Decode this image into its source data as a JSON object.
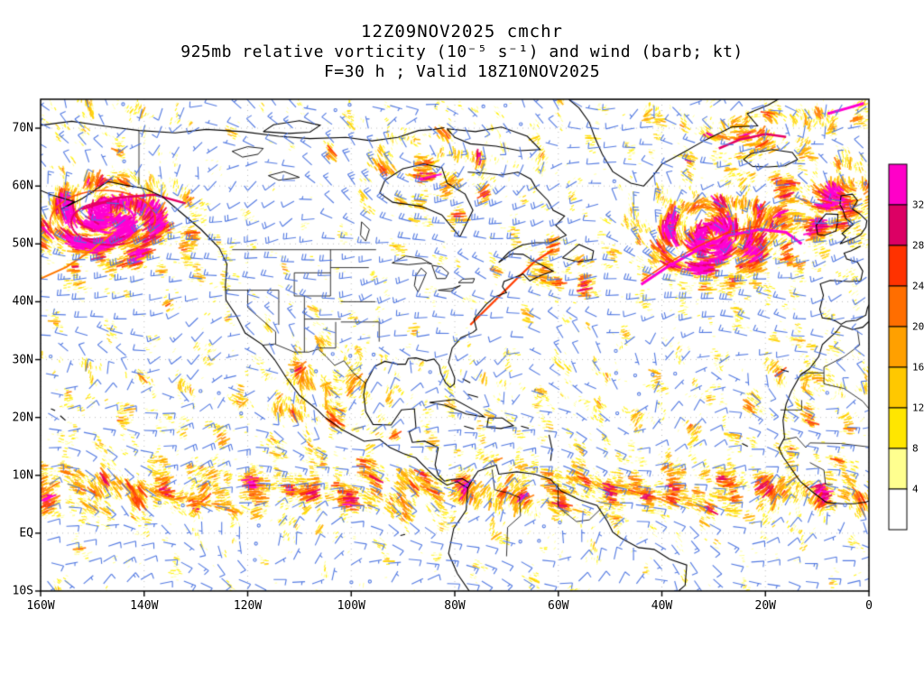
{
  "header": {
    "line1": "12Z09NOV2025 cmchr",
    "line2": "925mb relative vorticity (10⁻⁵ s⁻¹) and wind (barb; kt)",
    "line3": "F=30 h ; Valid 18Z10NOV2025"
  },
  "axes": {
    "lat_ticks": [
      {
        "label": "70N",
        "deg": 70
      },
      {
        "label": "60N",
        "deg": 60
      },
      {
        "label": "50N",
        "deg": 50
      },
      {
        "label": "40N",
        "deg": 40
      },
      {
        "label": "30N",
        "deg": 30
      },
      {
        "label": "20N",
        "deg": 20
      },
      {
        "label": "10N",
        "deg": 10
      },
      {
        "label": "EQ",
        "deg": 0
      },
      {
        "label": "10S",
        "deg": -10
      }
    ],
    "lon_ticks": [
      {
        "label": "160W",
        "deg": -160
      },
      {
        "label": "140W",
        "deg": -140
      },
      {
        "label": "120W",
        "deg": -120
      },
      {
        "label": "100W",
        "deg": -100
      },
      {
        "label": "80W",
        "deg": -80
      },
      {
        "label": "60W",
        "deg": -60
      },
      {
        "label": "40W",
        "deg": -40
      },
      {
        "label": "20W",
        "deg": -20
      },
      {
        "label": "0",
        "deg": 0
      }
    ]
  },
  "colorbar": {
    "labels_top_to_bottom": [
      "32",
      "28",
      "24",
      "20",
      "16",
      "12",
      "8",
      "4"
    ],
    "colors_bottom_to_top": [
      "#ffffff",
      "#ffff8f",
      "#ffe600",
      "#ffc800",
      "#ffa000",
      "#ff6e00",
      "#ff3200",
      "#dc0064",
      "#ff00c8"
    ]
  },
  "style": {
    "barb_color": "#4a73e0",
    "coast_color": "#000000",
    "background": "#ffffff",
    "text_color": "#000000"
  },
  "chart_data": {
    "type": "heatmap",
    "title": "12Z09NOV2025 cmchr",
    "subtitle": "925mb relative vorticity (10⁻⁵ s⁻¹) and wind (barb; kt)",
    "forecast_line": "F=30 h ; Valid 18Z10NOV2025",
    "model": "cmchr",
    "init_time": "12Z09NOV2025",
    "forecast_hour": 30,
    "valid_time": "18Z10NOV2025",
    "level": "925mb",
    "field": "relative vorticity",
    "field_units": "10⁻⁵ s⁻¹",
    "wind_depiction": "barbs",
    "wind_units": "kt",
    "x_axis": {
      "label": "longitude",
      "ticks": [
        "160W",
        "140W",
        "120W",
        "100W",
        "80W",
        "60W",
        "40W",
        "20W",
        "0"
      ],
      "range_deg": [
        -160,
        0
      ]
    },
    "y_axis": {
      "label": "latitude",
      "ticks": [
        "70N",
        "60N",
        "50N",
        "40N",
        "30N",
        "20N",
        "10N",
        "EQ",
        "10S"
      ],
      "range_deg": [
        -10,
        75
      ]
    },
    "colorbar_levels": [
      4,
      8,
      12,
      16,
      20,
      24,
      28,
      32
    ],
    "colorbar_colors_low_to_high": [
      "#ffffff",
      "#ffff8f",
      "#ffe600",
      "#ffc800",
      "#ffa000",
      "#ff6e00",
      "#ff3200",
      "#dc0064",
      "#ff00c8"
    ],
    "grid": "dotted lat/lon gridlines",
    "legend_position": "right",
    "notable_features": [
      "intense cyclonic vorticity spiral over the Gulf of Alaska near 54N 147W (values > 32)",
      "long curved vorticity band across the North Atlantic 43-53N between 45W and 13W (values > 32)",
      "vorticity filaments near east Greenland / Iceland around 66-70N",
      "magenta streak near the top right of domain around 73N 5W",
      "orange-red streak along the Gulf of St Lawrence / US northeast coast",
      "yellow streaks over Mexico, Baja California and the US plains near 100-110W",
      "speckled ITCZ vorticity band near 5-10N across the Pacific and Atlantic",
      "streaks along the northwest Africa coast near 25-35N",
      "dense blue wind barbs everywhere; westerlies in midlatitudes, easterly trades in the tropics"
    ]
  }
}
